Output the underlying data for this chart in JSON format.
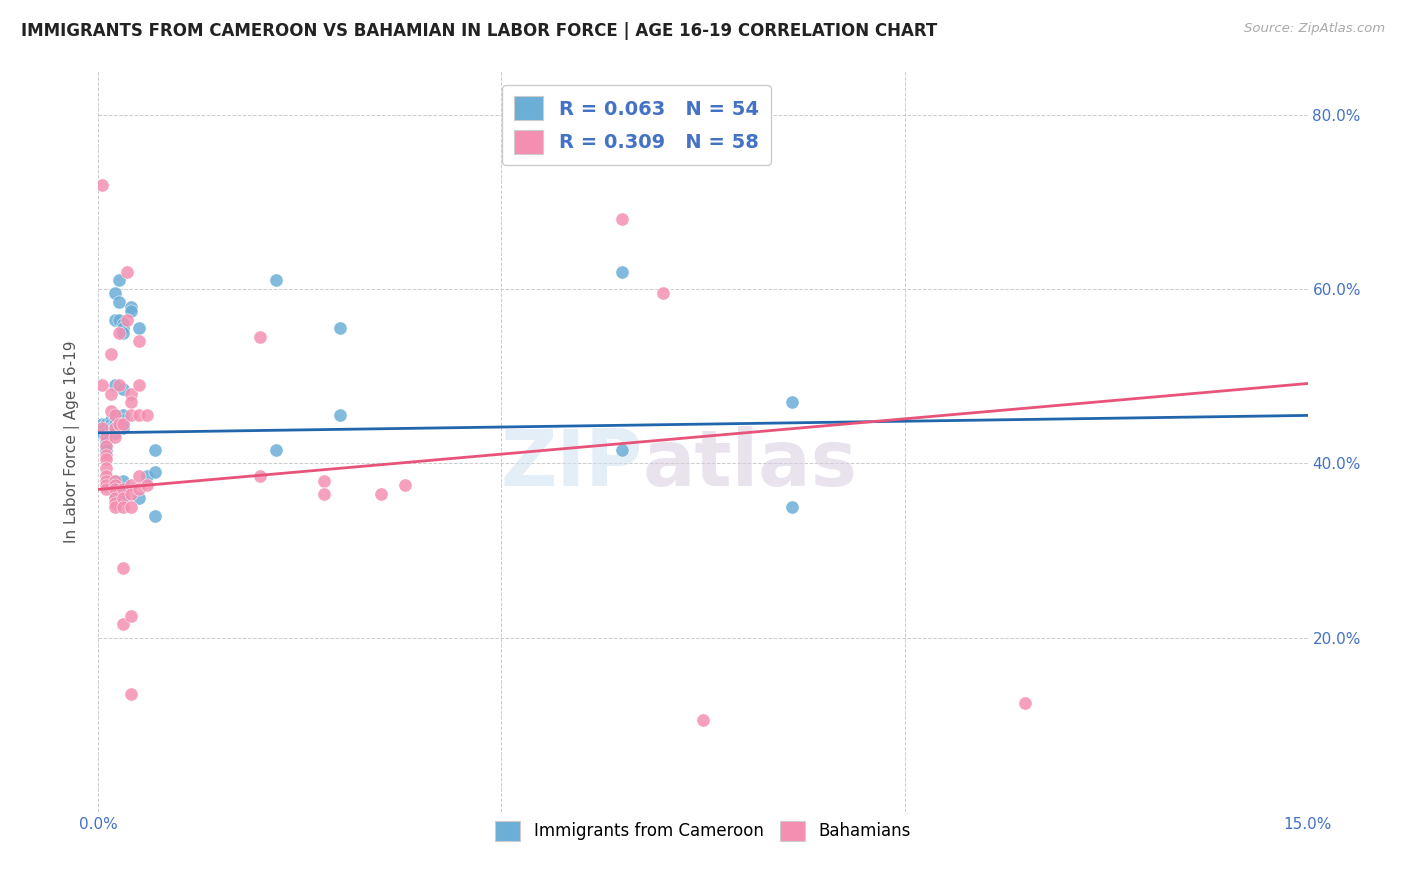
{
  "title": "IMMIGRANTS FROM CAMEROON VS BAHAMIAN IN LABOR FORCE | AGE 16-19 CORRELATION CHART",
  "source": "Source: ZipAtlas.com",
  "ylabel": "In Labor Force | Age 16-19",
  "x_min": 0.0,
  "x_max": 0.15,
  "y_min": 0.0,
  "y_max": 0.85,
  "color_blue": "#6baed6",
  "color_pink": "#f48fb1",
  "line_color_blue": "#2166ac",
  "line_color_pink": "#e8537a",
  "scatter_blue": [
    [
      0.0005,
      0.435
    ],
    [
      0.0005,
      0.445
    ],
    [
      0.0005,
      0.44
    ],
    [
      0.001,
      0.445
    ],
    [
      0.001,
      0.44
    ],
    [
      0.001,
      0.435
    ],
    [
      0.001,
      0.43
    ],
    [
      0.001,
      0.425
    ],
    [
      0.001,
      0.42
    ],
    [
      0.001,
      0.415
    ],
    [
      0.0015,
      0.45
    ],
    [
      0.0015,
      0.445
    ],
    [
      0.0015,
      0.44
    ],
    [
      0.002,
      0.595
    ],
    [
      0.002,
      0.565
    ],
    [
      0.002,
      0.49
    ],
    [
      0.002,
      0.455
    ],
    [
      0.002,
      0.45
    ],
    [
      0.002,
      0.445
    ],
    [
      0.002,
      0.44
    ],
    [
      0.002,
      0.435
    ],
    [
      0.002,
      0.38
    ],
    [
      0.002,
      0.375
    ],
    [
      0.002,
      0.365
    ],
    [
      0.0025,
      0.61
    ],
    [
      0.0025,
      0.585
    ],
    [
      0.0025,
      0.565
    ],
    [
      0.003,
      0.56
    ],
    [
      0.003,
      0.555
    ],
    [
      0.003,
      0.55
    ],
    [
      0.003,
      0.485
    ],
    [
      0.003,
      0.455
    ],
    [
      0.003,
      0.45
    ],
    [
      0.003,
      0.445
    ],
    [
      0.003,
      0.44
    ],
    [
      0.003,
      0.38
    ],
    [
      0.003,
      0.365
    ],
    [
      0.003,
      0.36
    ],
    [
      0.004,
      0.58
    ],
    [
      0.004,
      0.575
    ],
    [
      0.005,
      0.555
    ],
    [
      0.005,
      0.36
    ],
    [
      0.006,
      0.385
    ],
    [
      0.007,
      0.415
    ],
    [
      0.007,
      0.39
    ],
    [
      0.007,
      0.34
    ],
    [
      0.022,
      0.61
    ],
    [
      0.022,
      0.415
    ],
    [
      0.03,
      0.555
    ],
    [
      0.03,
      0.455
    ],
    [
      0.065,
      0.62
    ],
    [
      0.065,
      0.415
    ],
    [
      0.086,
      0.47
    ],
    [
      0.086,
      0.35
    ]
  ],
  "scatter_pink": [
    [
      0.0005,
      0.72
    ],
    [
      0.0005,
      0.49
    ],
    [
      0.0005,
      0.44
    ],
    [
      0.001,
      0.43
    ],
    [
      0.001,
      0.42
    ],
    [
      0.001,
      0.41
    ],
    [
      0.001,
      0.405
    ],
    [
      0.001,
      0.395
    ],
    [
      0.001,
      0.385
    ],
    [
      0.001,
      0.38
    ],
    [
      0.001,
      0.375
    ],
    [
      0.001,
      0.37
    ],
    [
      0.0015,
      0.525
    ],
    [
      0.0015,
      0.48
    ],
    [
      0.0015,
      0.46
    ],
    [
      0.002,
      0.455
    ],
    [
      0.002,
      0.44
    ],
    [
      0.002,
      0.43
    ],
    [
      0.002,
      0.38
    ],
    [
      0.002,
      0.375
    ],
    [
      0.002,
      0.37
    ],
    [
      0.002,
      0.36
    ],
    [
      0.002,
      0.355
    ],
    [
      0.002,
      0.35
    ],
    [
      0.0025,
      0.55
    ],
    [
      0.0025,
      0.49
    ],
    [
      0.0025,
      0.445
    ],
    [
      0.003,
      0.445
    ],
    [
      0.003,
      0.37
    ],
    [
      0.003,
      0.36
    ],
    [
      0.003,
      0.35
    ],
    [
      0.003,
      0.28
    ],
    [
      0.003,
      0.215
    ],
    [
      0.0035,
      0.62
    ],
    [
      0.0035,
      0.565
    ],
    [
      0.004,
      0.48
    ],
    [
      0.004,
      0.47
    ],
    [
      0.004,
      0.455
    ],
    [
      0.004,
      0.375
    ],
    [
      0.004,
      0.365
    ],
    [
      0.004,
      0.35
    ],
    [
      0.004,
      0.225
    ],
    [
      0.004,
      0.135
    ],
    [
      0.005,
      0.54
    ],
    [
      0.005,
      0.49
    ],
    [
      0.005,
      0.455
    ],
    [
      0.005,
      0.385
    ],
    [
      0.005,
      0.37
    ],
    [
      0.006,
      0.455
    ],
    [
      0.006,
      0.375
    ],
    [
      0.02,
      0.545
    ],
    [
      0.02,
      0.385
    ],
    [
      0.028,
      0.38
    ],
    [
      0.028,
      0.365
    ],
    [
      0.035,
      0.365
    ],
    [
      0.038,
      0.375
    ],
    [
      0.065,
      0.68
    ],
    [
      0.07,
      0.595
    ],
    [
      0.075,
      0.105
    ],
    [
      0.115,
      0.125
    ]
  ]
}
